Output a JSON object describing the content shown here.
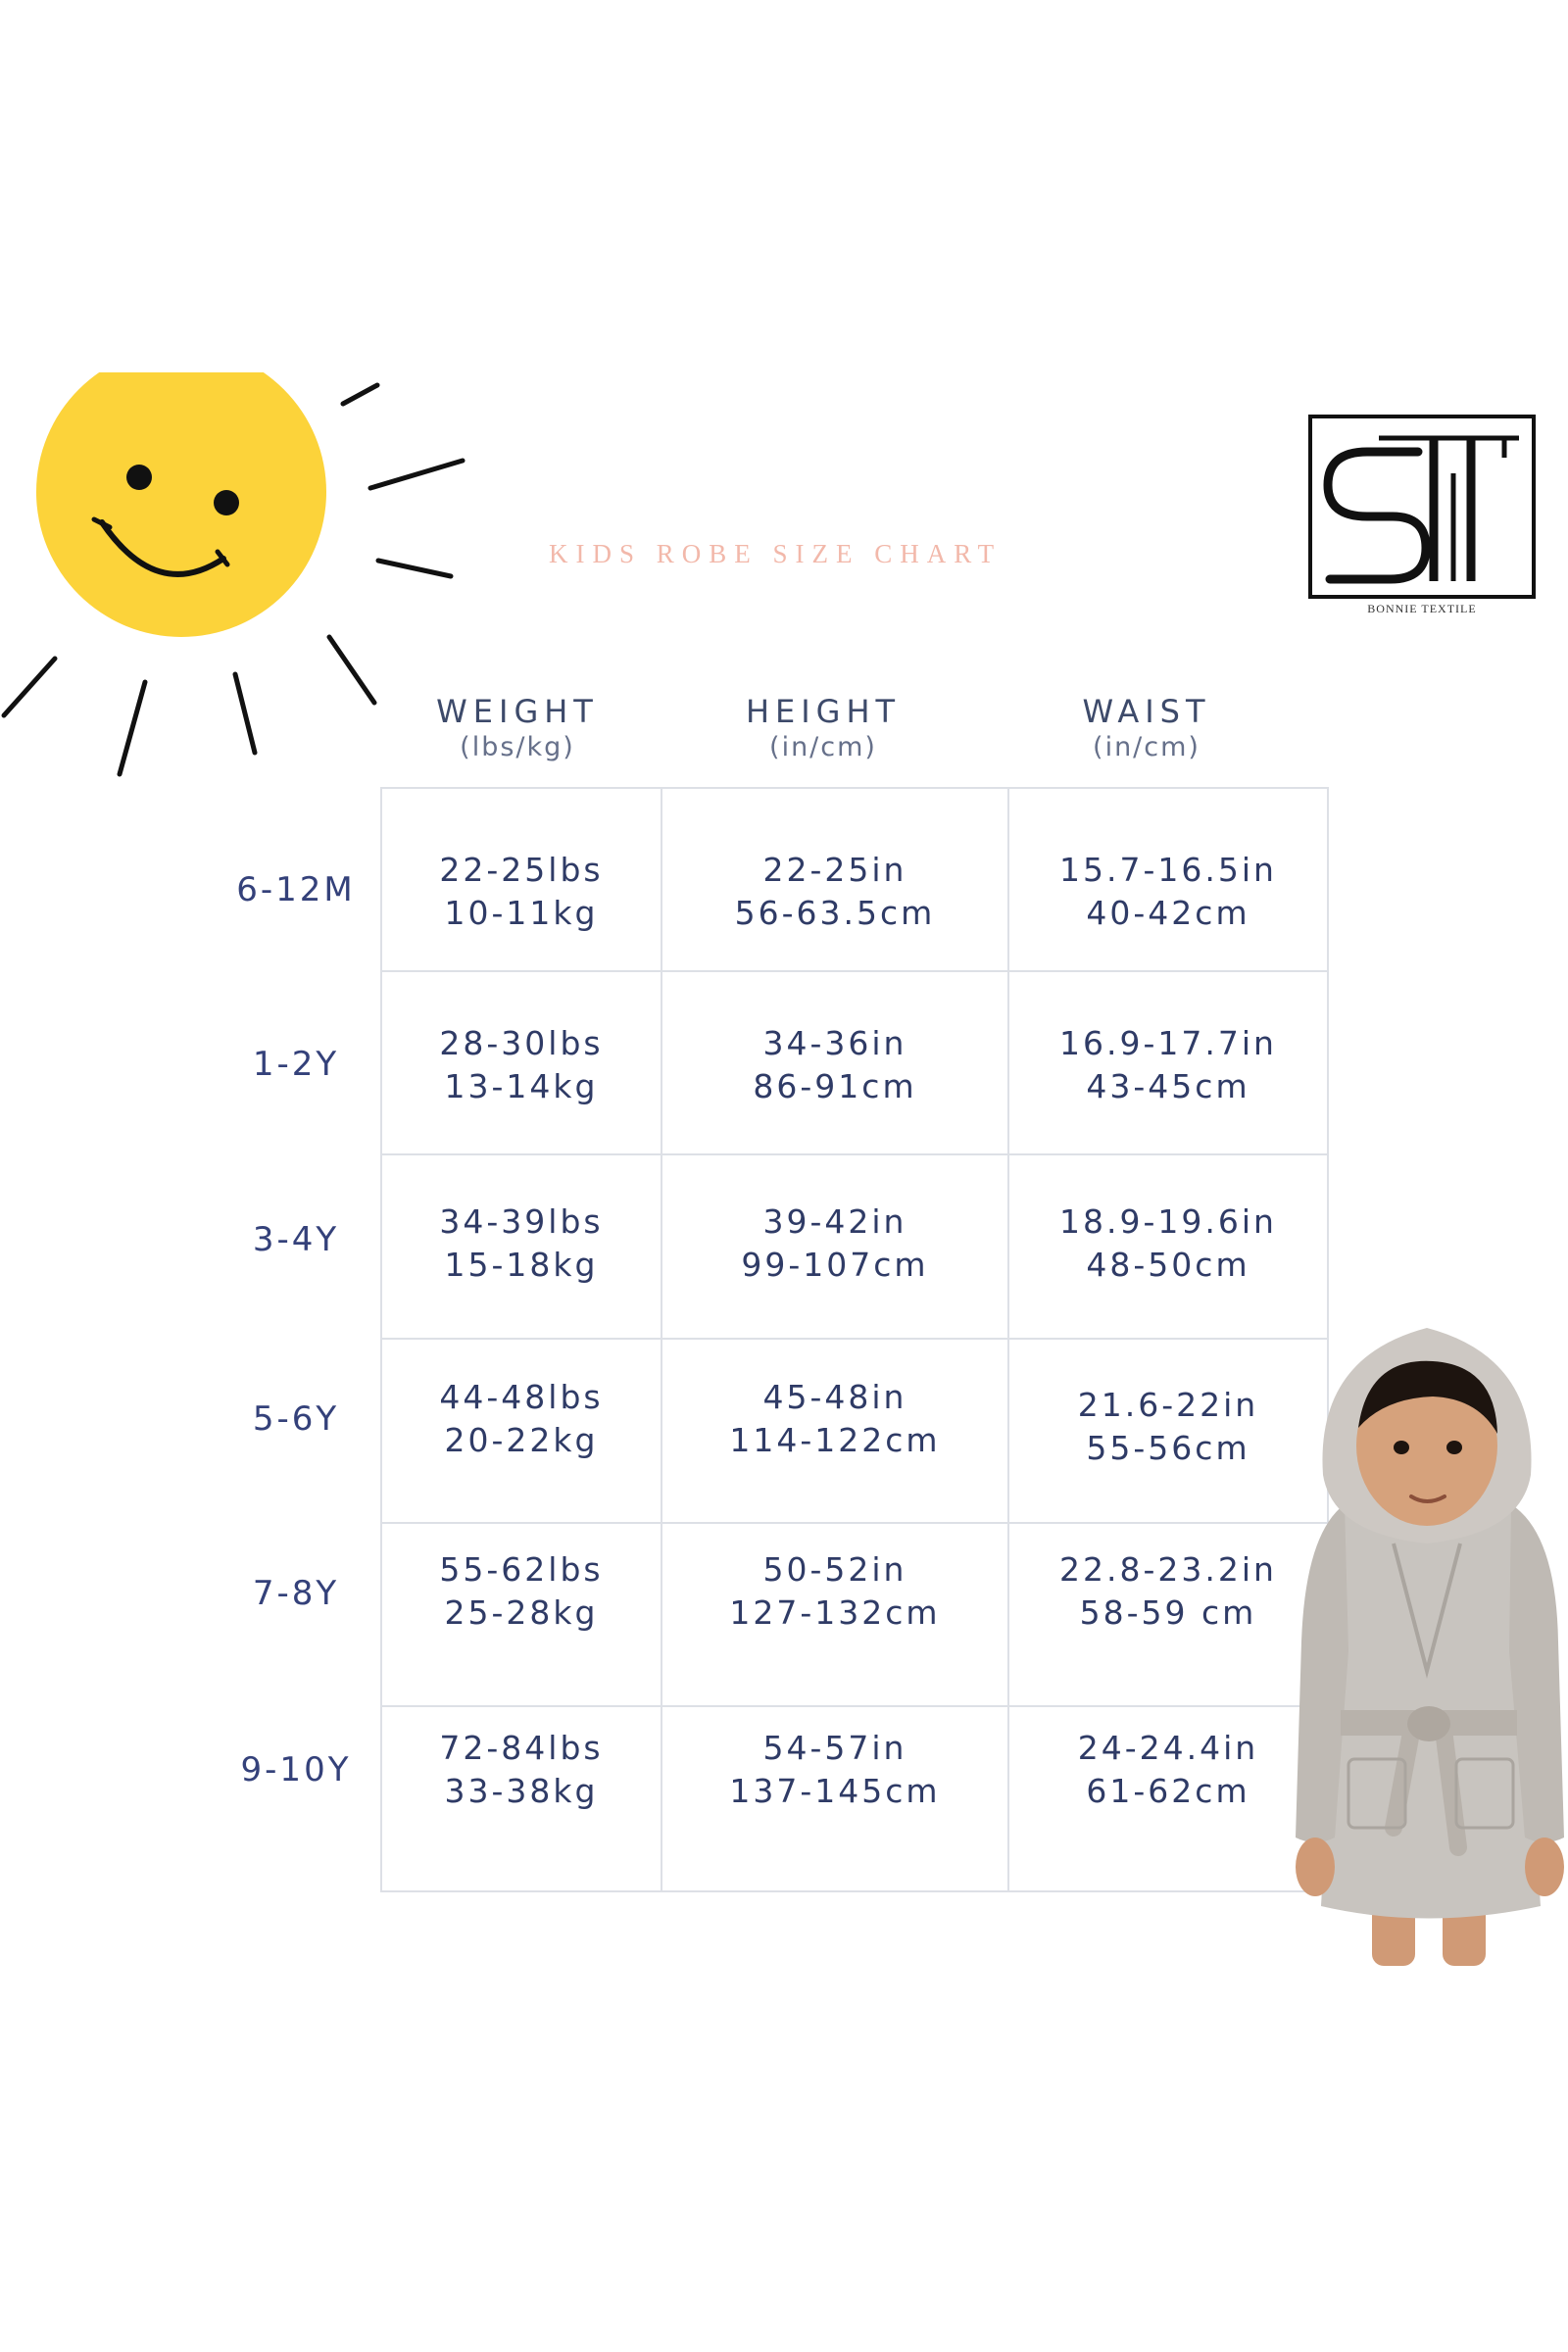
{
  "title": "KIDS ROBE SIZE CHART",
  "logo": {
    "letters": "ST",
    "caption": "BONNIE TEXTILE"
  },
  "colors": {
    "title": "#f2b8aa",
    "text": "#2f3b66",
    "grid": "#dde0e6",
    "sun": "#fcd33a",
    "robe": "#c8c4bf"
  },
  "icons": {
    "sun": "smiling-sun-icon",
    "child": "child-in-bathrobe-illustration"
  },
  "columns": [
    {
      "label": "WEIGHT",
      "unit": "(lbs/kg)"
    },
    {
      "label": "HEIGHT",
      "unit": "(in/cm)"
    },
    {
      "label": "WAIST",
      "unit": "(in/cm)"
    }
  ],
  "rows": [
    {
      "size": "6-12M",
      "weight": [
        "22-25lbs",
        "10-11kg"
      ],
      "height": [
        "22-25in",
        "56-63.5cm"
      ],
      "waist": [
        "15.7-16.5in",
        "40-42cm"
      ]
    },
    {
      "size": "1-2Y",
      "weight": [
        "28-30lbs",
        "13-14kg"
      ],
      "height": [
        "34-36in",
        "86-91cm"
      ],
      "waist": [
        "16.9-17.7in",
        "43-45cm"
      ]
    },
    {
      "size": "3-4Y",
      "weight": [
        "34-39lbs",
        "15-18kg"
      ],
      "height": [
        "39-42in",
        "99-107cm"
      ],
      "waist": [
        "18.9-19.6in",
        "48-50cm"
      ]
    },
    {
      "size": "5-6Y",
      "weight": [
        "44-48lbs",
        "20-22kg"
      ],
      "height": [
        "45-48in",
        "114-122cm"
      ],
      "waist": [
        "21.6-22in",
        "55-56cm"
      ]
    },
    {
      "size": "7-8Y",
      "weight": [
        "55-62lbs",
        "25-28kg"
      ],
      "height": [
        "50-52in",
        "127-132cm"
      ],
      "waist": [
        "22.8-23.2in",
        "58-59 cm"
      ]
    },
    {
      "size": "9-10Y",
      "weight": [
        "72-84lbs",
        "33-38kg"
      ],
      "height": [
        "54-57in",
        "137-145cm"
      ],
      "waist": [
        "24-24.4in",
        "61-62cm"
      ]
    }
  ]
}
